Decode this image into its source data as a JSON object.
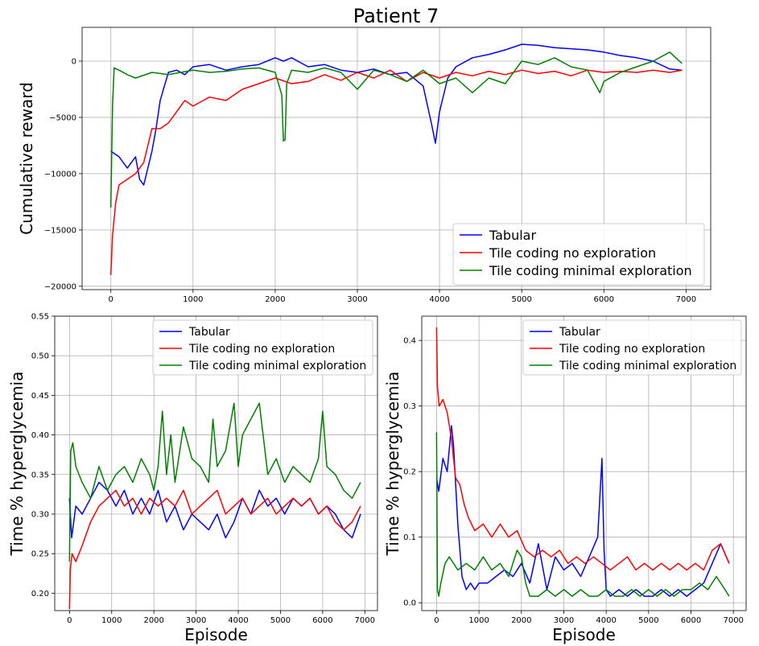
{
  "figure": {
    "title": "Patient 7"
  },
  "chart_data": [
    {
      "type": "line",
      "title": "Patient 7",
      "xlabel": "",
      "ylabel": "Cumulative reward",
      "xlim": [
        -350,
        7300
      ],
      "ylim": [
        -20300,
        3000
      ],
      "xticks": [
        0,
        1000,
        2000,
        3000,
        4000,
        5000,
        6000,
        7000
      ],
      "yticks": [
        -20000,
        -15000,
        -10000,
        -5000,
        0
      ],
      "grid": true,
      "legend": "lower-right",
      "series": [
        {
          "name": "Tabular",
          "color": "#0000ff",
          "x": [
            0,
            100,
            200,
            300,
            350,
            400,
            500,
            550,
            600,
            700,
            800,
            900,
            1000,
            1200,
            1400,
            1600,
            1800,
            2000,
            2100,
            2200,
            2400,
            2600,
            2800,
            3000,
            3200,
            3400,
            3600,
            3800,
            3900,
            3950,
            4000,
            4100,
            4200,
            4400,
            4600,
            4800,
            5000,
            5200,
            5400,
            5600,
            5800,
            6000,
            6200,
            6400,
            6600,
            6800,
            6950
          ],
          "y": [
            -8000,
            -8500,
            -9500,
            -8500,
            -10500,
            -11000,
            -8000,
            -6000,
            -3500,
            -1000,
            -800,
            -1200,
            -500,
            -300,
            -800,
            -500,
            -300,
            300,
            0,
            300,
            -500,
            -300,
            -800,
            -1000,
            -700,
            -1200,
            -1000,
            -2200,
            -5500,
            -7300,
            -4500,
            -1500,
            -500,
            300,
            600,
            1000,
            1500,
            1400,
            1200,
            1100,
            1000,
            800,
            500,
            300,
            0,
            -700,
            -800
          ]
        },
        {
          "name": "Tile coding no exploration",
          "color": "#ff0000",
          "x": [
            0,
            20,
            60,
            100,
            200,
            300,
            400,
            500,
            600,
            700,
            800,
            900,
            1000,
            1200,
            1400,
            1600,
            1800,
            2000,
            2200,
            2400,
            2600,
            2800,
            3000,
            3200,
            3400,
            3600,
            3800,
            4000,
            4200,
            4400,
            4600,
            4800,
            5000,
            5200,
            5400,
            5600,
            5800,
            6000,
            6200,
            6400,
            6600,
            6800,
            6950
          ],
          "y": [
            -19000,
            -15500,
            -12500,
            -11000,
            -10500,
            -10000,
            -9000,
            -6000,
            -6000,
            -5500,
            -4500,
            -3500,
            -4000,
            -3200,
            -3500,
            -2500,
            -2000,
            -1500,
            -2000,
            -1800,
            -1200,
            -1700,
            -1000,
            -1500,
            -800,
            -1800,
            -1000,
            -1500,
            -1000,
            -1300,
            -900,
            -1200,
            -800,
            -1100,
            -900,
            -1300,
            -800,
            -1000,
            -900,
            -1000,
            -800,
            -1000,
            -800
          ]
        },
        {
          "name": "Tile coding minimal exploration",
          "color": "#008000",
          "x": [
            0,
            20,
            40,
            100,
            200,
            300,
            500,
            700,
            1000,
            1200,
            1400,
            1600,
            1800,
            2000,
            2080,
            2100,
            2120,
            2140,
            2200,
            2400,
            2600,
            2800,
            3000,
            3200,
            3400,
            3600,
            3800,
            4000,
            4200,
            4400,
            4600,
            4800,
            5000,
            5200,
            5400,
            5600,
            5800,
            5950,
            6000,
            6200,
            6400,
            6600,
            6800,
            6950
          ],
          "y": [
            -13000,
            -4000,
            -600,
            -800,
            -1200,
            -1500,
            -1000,
            -1200,
            -800,
            -1000,
            -900,
            -700,
            -600,
            -1000,
            -3000,
            -7100,
            -7000,
            -2000,
            -800,
            -1000,
            -600,
            -1000,
            -2500,
            -800,
            -1200,
            -1800,
            -800,
            -2000,
            -1500,
            -2800,
            -1500,
            -2000,
            0,
            -300,
            300,
            -500,
            -800,
            -2800,
            -1800,
            -1000,
            -500,
            0,
            800,
            -200
          ]
        }
      ]
    },
    {
      "type": "line",
      "title": "",
      "xlabel": "Episode",
      "ylabel": "Time % hyperglycemia",
      "xlim": [
        -350,
        7300
      ],
      "ylim": [
        0.178,
        0.55
      ],
      "xticks": [
        0,
        1000,
        2000,
        3000,
        4000,
        5000,
        6000,
        7000
      ],
      "yticks": [
        0.2,
        0.25,
        0.3,
        0.35,
        0.4,
        0.45,
        0.5,
        0.55
      ],
      "grid": true,
      "legend": "upper-right",
      "series": [
        {
          "name": "Tabular",
          "color": "#0000ff",
          "x": [
            0,
            50,
            150,
            300,
            500,
            700,
            900,
            1100,
            1300,
            1500,
            1700,
            1900,
            2100,
            2300,
            2500,
            2700,
            2900,
            3100,
            3300,
            3500,
            3700,
            3900,
            4100,
            4300,
            4500,
            4700,
            4900,
            5100,
            5300,
            5500,
            5700,
            5900,
            6100,
            6300,
            6500,
            6700,
            6900
          ],
          "y": [
            0.32,
            0.27,
            0.31,
            0.3,
            0.32,
            0.34,
            0.33,
            0.31,
            0.33,
            0.3,
            0.32,
            0.3,
            0.33,
            0.29,
            0.31,
            0.28,
            0.3,
            0.29,
            0.28,
            0.3,
            0.27,
            0.29,
            0.32,
            0.3,
            0.33,
            0.31,
            0.32,
            0.3,
            0.32,
            0.31,
            0.32,
            0.3,
            0.31,
            0.3,
            0.28,
            0.27,
            0.3
          ]
        },
        {
          "name": "Tile coding no exploration",
          "color": "#ff0000",
          "x": [
            0,
            20,
            60,
            150,
            300,
            500,
            700,
            900,
            1100,
            1300,
            1500,
            1700,
            1900,
            2100,
            2300,
            2500,
            2700,
            2900,
            3100,
            3300,
            3500,
            3700,
            3900,
            4100,
            4300,
            4500,
            4700,
            4900,
            5100,
            5300,
            5500,
            5700,
            5900,
            6100,
            6300,
            6500,
            6700,
            6900
          ],
          "y": [
            0.18,
            0.23,
            0.25,
            0.24,
            0.26,
            0.29,
            0.31,
            0.32,
            0.33,
            0.31,
            0.32,
            0.3,
            0.32,
            0.31,
            0.32,
            0.31,
            0.33,
            0.3,
            0.31,
            0.32,
            0.33,
            0.3,
            0.31,
            0.32,
            0.3,
            0.31,
            0.32,
            0.3,
            0.31,
            0.32,
            0.31,
            0.32,
            0.3,
            0.31,
            0.29,
            0.28,
            0.29,
            0.31
          ]
        },
        {
          "name": "Tile coding minimal exploration",
          "color": "#008000",
          "x": [
            0,
            30,
            80,
            150,
            300,
            500,
            700,
            900,
            1100,
            1300,
            1500,
            1700,
            1900,
            2000,
            2100,
            2200,
            2300,
            2400,
            2500,
            2700,
            2900,
            3100,
            3300,
            3400,
            3500,
            3700,
            3900,
            4000,
            4100,
            4300,
            4500,
            4700,
            4900,
            5100,
            5300,
            5500,
            5700,
            5900,
            6000,
            6100,
            6300,
            6500,
            6700,
            6900
          ],
          "y": [
            0.24,
            0.38,
            0.39,
            0.36,
            0.34,
            0.32,
            0.36,
            0.33,
            0.35,
            0.36,
            0.34,
            0.37,
            0.35,
            0.33,
            0.36,
            0.43,
            0.35,
            0.4,
            0.34,
            0.41,
            0.37,
            0.36,
            0.34,
            0.42,
            0.36,
            0.38,
            0.44,
            0.36,
            0.4,
            0.42,
            0.44,
            0.35,
            0.37,
            0.34,
            0.36,
            0.35,
            0.34,
            0.37,
            0.43,
            0.36,
            0.35,
            0.33,
            0.32,
            0.34
          ]
        }
      ]
    },
    {
      "type": "line",
      "title": "",
      "xlabel": "Episode",
      "ylabel": "Time % hyperglycemia",
      "xlim": [
        -350,
        7300
      ],
      "ylim": [
        -0.012,
        0.437
      ],
      "xticks": [
        0,
        1000,
        2000,
        3000,
        4000,
        5000,
        6000,
        7000
      ],
      "yticks": [
        0.0,
        0.1,
        0.2,
        0.3,
        0.4
      ],
      "grid": true,
      "legend": "upper-right",
      "series": [
        {
          "name": "Tabular",
          "color": "#0000ff",
          "x": [
            0,
            50,
            150,
            250,
            350,
            400,
            500,
            600,
            700,
            800,
            900,
            1000,
            1200,
            1400,
            1600,
            1800,
            2000,
            2200,
            2400,
            2600,
            2800,
            3000,
            3200,
            3400,
            3600,
            3800,
            3900,
            3950,
            4000,
            4100,
            4300,
            4500,
            4700,
            4900,
            5100,
            5300,
            5500,
            5700,
            5900,
            6100,
            6300,
            6500,
            6700,
            6900
          ],
          "y": [
            0.19,
            0.17,
            0.22,
            0.2,
            0.27,
            0.24,
            0.12,
            0.04,
            0.02,
            0.03,
            0.02,
            0.03,
            0.03,
            0.04,
            0.05,
            0.04,
            0.06,
            0.03,
            0.09,
            0.02,
            0.07,
            0.05,
            0.06,
            0.04,
            0.07,
            0.1,
            0.22,
            0.08,
            0.02,
            0.01,
            0.02,
            0.01,
            0.02,
            0.01,
            0.01,
            0.02,
            0.01,
            0.02,
            0.01,
            0.02,
            0.03,
            0.06,
            0.09,
            0.06
          ]
        },
        {
          "name": "Tile coding no exploration",
          "color": "#ff0000",
          "x": [
            0,
            20,
            60,
            150,
            250,
            350,
            450,
            550,
            650,
            750,
            900,
            1100,
            1300,
            1500,
            1700,
            1900,
            2100,
            2300,
            2500,
            2700,
            2900,
            3100,
            3300,
            3500,
            3700,
            3900,
            4100,
            4300,
            4500,
            4700,
            4900,
            5100,
            5300,
            5500,
            5700,
            5900,
            6100,
            6300,
            6500,
            6700,
            6900
          ],
          "y": [
            0.42,
            0.33,
            0.3,
            0.31,
            0.29,
            0.25,
            0.19,
            0.18,
            0.15,
            0.13,
            0.11,
            0.12,
            0.1,
            0.12,
            0.1,
            0.11,
            0.08,
            0.07,
            0.08,
            0.07,
            0.08,
            0.06,
            0.07,
            0.06,
            0.07,
            0.06,
            0.05,
            0.06,
            0.07,
            0.05,
            0.06,
            0.05,
            0.06,
            0.05,
            0.06,
            0.05,
            0.06,
            0.05,
            0.08,
            0.09,
            0.06
          ]
        },
        {
          "name": "Tile coding minimal exploration",
          "color": "#008000",
          "x": [
            0,
            20,
            50,
            100,
            200,
            300,
            500,
            700,
            900,
            1100,
            1300,
            1500,
            1700,
            1900,
            2000,
            2100,
            2200,
            2400,
            2600,
            2800,
            3000,
            3200,
            3400,
            3600,
            3800,
            4000,
            4200,
            4400,
            4600,
            4800,
            5000,
            5200,
            5400,
            5600,
            5800,
            6000,
            6200,
            6400,
            6600,
            6800,
            6900
          ],
          "y": [
            0.26,
            0.02,
            0.01,
            0.03,
            0.06,
            0.07,
            0.05,
            0.06,
            0.05,
            0.07,
            0.05,
            0.06,
            0.04,
            0.08,
            0.07,
            0.03,
            0.01,
            0.01,
            0.02,
            0.01,
            0.02,
            0.01,
            0.02,
            0.01,
            0.01,
            0.02,
            0.01,
            0.01,
            0.02,
            0.01,
            0.02,
            0.01,
            0.02,
            0.01,
            0.02,
            0.02,
            0.03,
            0.02,
            0.04,
            0.02,
            0.01
          ]
        }
      ]
    }
  ]
}
